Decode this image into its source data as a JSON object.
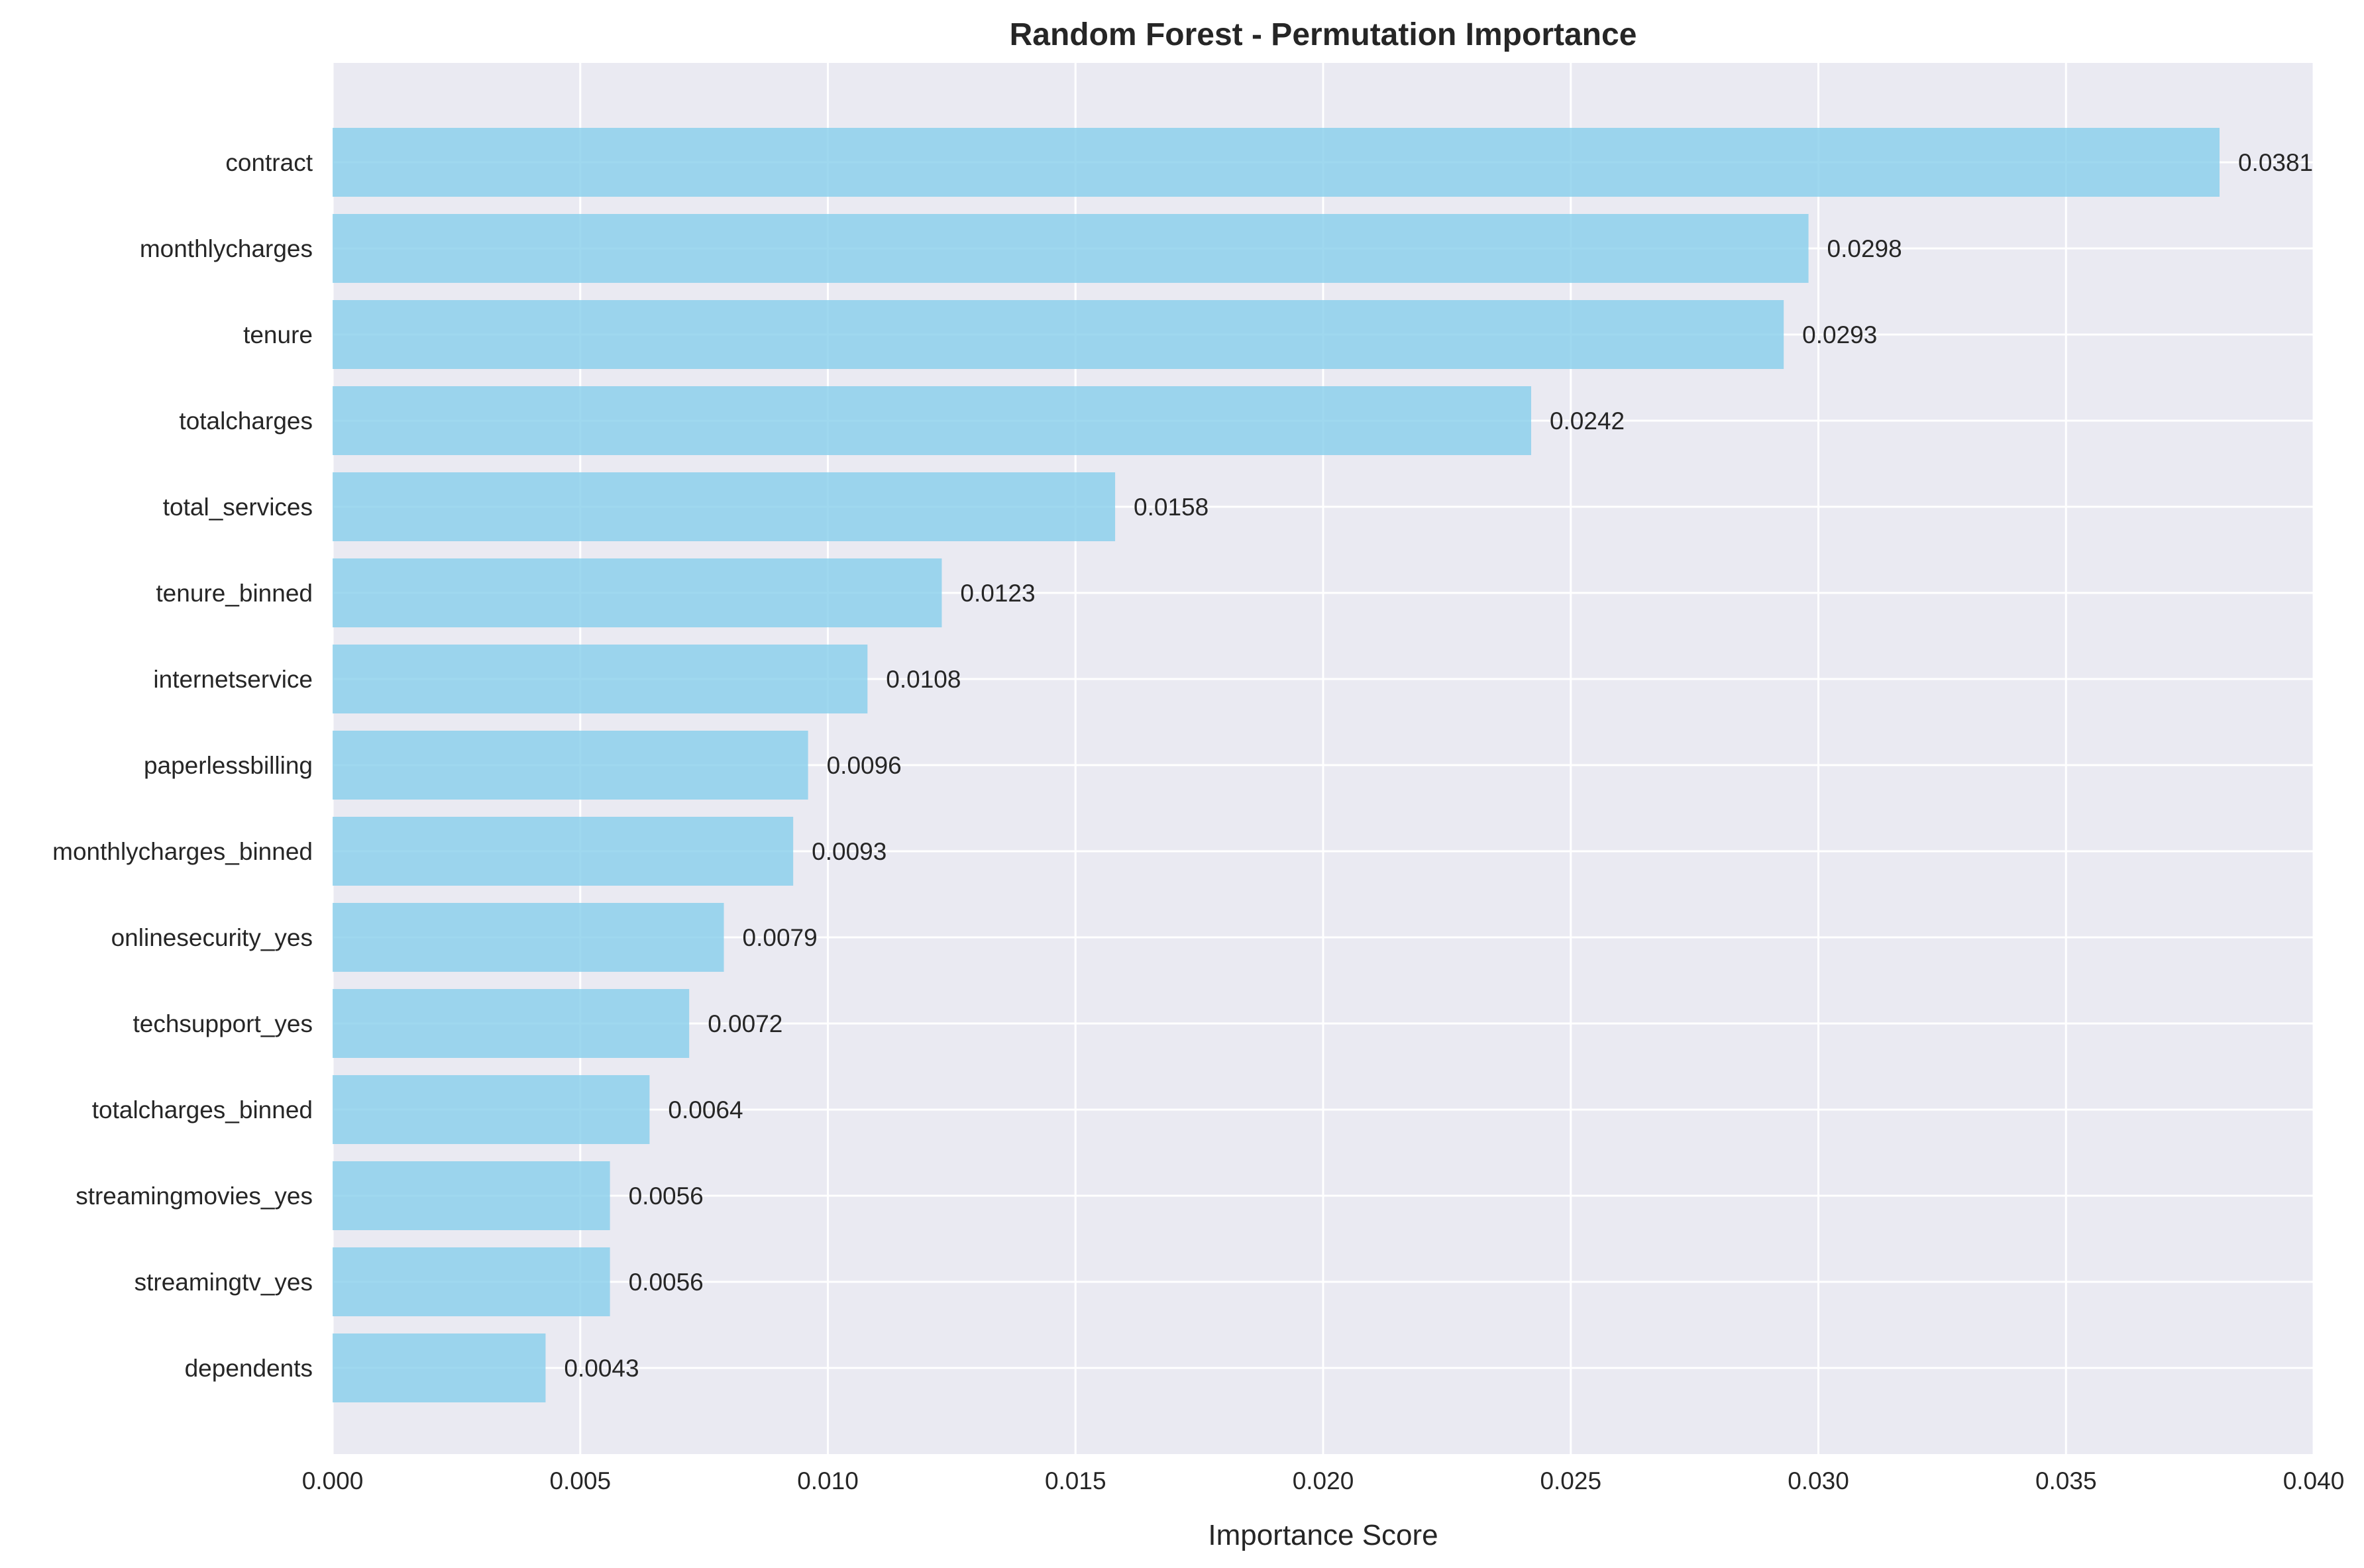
{
  "chart_data": {
    "type": "bar",
    "orientation": "horizontal",
    "title": "Random Forest - Permutation Importance",
    "xlabel": "Importance Score",
    "ylabel": "",
    "xlim": [
      0,
      0.04
    ],
    "x_ticks": [
      "0.000",
      "0.005",
      "0.010",
      "0.015",
      "0.020",
      "0.025",
      "0.030",
      "0.035",
      "0.040"
    ],
    "x_tick_values": [
      0,
      0.005,
      0.01,
      0.015,
      0.02,
      0.025,
      0.03,
      0.035,
      0.04
    ],
    "grid": true,
    "bar_color": "#87ceeb",
    "background_color": "#eaeaf2",
    "categories": [
      "contract",
      "monthlycharges",
      "tenure",
      "totalcharges",
      "total_services",
      "tenure_binned",
      "internetservice",
      "paperlessbilling",
      "monthlycharges_binned",
      "onlinesecurity_yes",
      "techsupport_yes",
      "totalcharges_binned",
      "streamingmovies_yes",
      "streamingtv_yes",
      "dependents"
    ],
    "values": [
      0.0381,
      0.0298,
      0.0293,
      0.0242,
      0.0158,
      0.0123,
      0.0108,
      0.0096,
      0.0093,
      0.0079,
      0.0072,
      0.0064,
      0.0056,
      0.0056,
      0.0043
    ],
    "value_labels": [
      "0.0381",
      "0.0298",
      "0.0293",
      "0.0242",
      "0.0158",
      "0.0123",
      "0.0108",
      "0.0096",
      "0.0093",
      "0.0079",
      "0.0072",
      "0.0064",
      "0.0056",
      "0.0056",
      "0.0043"
    ]
  }
}
